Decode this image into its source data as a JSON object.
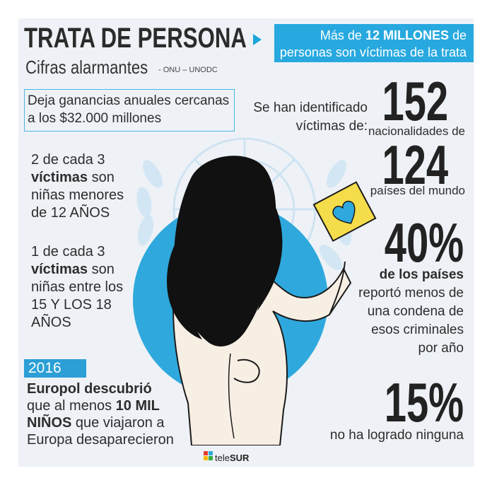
{
  "header": {
    "title": "TRATA DE PERSONA",
    "subtitle": "Cifras alarmantes",
    "source": "- ONU – UNODC",
    "banner_line1_pre": "Más de ",
    "banner_line1_bold": "12 MILLONES",
    "banner_line1_post": " de",
    "banner_line2": "personas son víctimas de la trata"
  },
  "earnings": {
    "line1": "Deja ganancias anuales cercanas",
    "line2": "a los $32.000 millones"
  },
  "stat_girls_under12": {
    "l1": "2 de cada 3",
    "l2_bold": "víctimas",
    "l2_rest": " son",
    "l3": "niñas menores",
    "l4": "de 12 AÑOS"
  },
  "stat_girls_15_18": {
    "l1": "1 de cada 3",
    "l2_bold": "víctimas",
    "l2_rest": " son",
    "l3": "niñas entre los",
    "l4": "15 Y LOS 18",
    "l5": "AÑOS"
  },
  "europol": {
    "year": "2016",
    "l1": "Europol descubrió",
    "l2_pre": "que al menos ",
    "l2_bold": "10 MIL",
    "l3_bold": "NIÑOS",
    "l3_rest": " que viajaron a",
    "l4": "Europa desaparecieron"
  },
  "identified": {
    "l1": "Se han identificado",
    "l2": "víctimas de:",
    "num_nationalities": "152",
    "nationalities_label": "nacionalidades de",
    "num_countries": "124",
    "countries_label": "países del mundo"
  },
  "pct40": {
    "value": "40%",
    "l1": "de los países",
    "l2": "reportó menos de",
    "l3": "una condena de",
    "l4": "esos criminales",
    "l5": "por año"
  },
  "pct15": {
    "value": "15%",
    "label": "no ha logrado ninguna"
  },
  "logo": {
    "text_pre": "tele",
    "text_bold": "SUR"
  },
  "colors": {
    "accent": "#27a9df",
    "heart": "#2fa9dd",
    "card": "#f5dc4a",
    "text": "#2d2d2d"
  }
}
